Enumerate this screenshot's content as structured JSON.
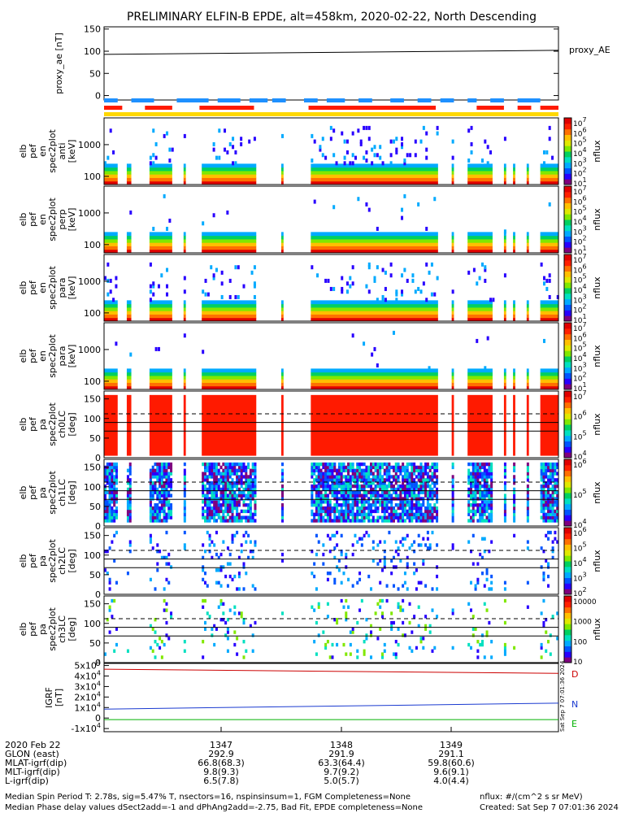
{
  "title": "PRELIMINARY ELFIN-B EPDE, alt=458km, 2020-02-22, North Descending",
  "colors": {
    "spectrum": [
      "#7f007f",
      "#2800ff",
      "#0055ff",
      "#00aaff",
      "#00e0c0",
      "#00d060",
      "#80e800",
      "#e0e800",
      "#ffc000",
      "#ff7000",
      "#ff2000",
      "#e00000"
    ],
    "sat_blue": "#1e90ff",
    "sat_red": "#ff1a00",
    "sat_yellow": "#ffd800",
    "line_D": "#cc0000",
    "line_N": "#1a3ad0",
    "line_E": "#00b000"
  },
  "chart_data": [
    {
      "panel": "proxy_ae",
      "type": "line",
      "ylabel": "proxy_ae [nT]",
      "yticks": [
        "150",
        "100",
        "50",
        "0"
      ],
      "ylim": [
        -10,
        155
      ],
      "series": [
        {
          "name": "proxy_AE",
          "x": [
            0,
            1
          ],
          "values": [
            93,
            102
          ]
        }
      ]
    },
    {
      "panel": "pef_en_spec2plot_anti",
      "type": "heatmap",
      "ylabel": [
        "elb",
        "pef",
        "en",
        "spec2plot",
        "anti",
        "[keV]"
      ],
      "yticks": [
        "1000",
        "100"
      ],
      "ylim": [
        55,
        7000
      ],
      "yscale": "log",
      "colorbar": {
        "label": "nflux",
        "ticks": [
          "10^7",
          "10^6",
          "10^5",
          "10^4",
          "10^3",
          "10^2",
          "10^1"
        ]
      }
    },
    {
      "panel": "pef_en_spec2plot_perp",
      "type": "heatmap",
      "ylabel": [
        "elb",
        "pef",
        "en",
        "spec2plot",
        "perp",
        "[keV]"
      ],
      "yticks": [
        "1000",
        "100"
      ],
      "ylim": [
        55,
        7000
      ],
      "yscale": "log",
      "colorbar": {
        "label": "nflux",
        "ticks": [
          "10^7",
          "10^6",
          "10^5",
          "10^4",
          "10^3",
          "10^2",
          "10^1"
        ]
      }
    },
    {
      "panel": "pef_en_spec2plot_para",
      "type": "heatmap",
      "ylabel": [
        "elb",
        "pef",
        "en",
        "spec2plot",
        "para",
        "[keV]"
      ],
      "yticks": [
        "1000",
        "100"
      ],
      "ylim": [
        55,
        7000
      ],
      "yscale": "log",
      "colorbar": {
        "label": "nflux",
        "ticks": [
          "10^7",
          "10^6",
          "10^5",
          "10^4",
          "10^3",
          "10^2",
          "10^1"
        ]
      }
    },
    {
      "panel": "pef_en_spec2plot_anti2",
      "type": "heatmap",
      "ylabel": [
        "elb",
        "pef",
        "en",
        "spec2plot",
        "para",
        "[keV]"
      ],
      "yticks": [
        "1000",
        "100"
      ],
      "ylim": [
        55,
        7000
      ],
      "yscale": "log",
      "colorbar": {
        "label": "nflux",
        "ticks": [
          "10^7",
          "10^6",
          "10^5",
          "10^4",
          "10^3",
          "10^2",
          "10^1"
        ]
      }
    },
    {
      "panel": "pa_ch0LC",
      "type": "heatmap",
      "ylabel": [
        "elb",
        "pef",
        "pa",
        "spec2plot",
        "ch0LC",
        "[deg]"
      ],
      "yticks": [
        "150",
        "100",
        "50",
        "0"
      ],
      "ylim": [
        0,
        170
      ],
      "reference_lines_deg": [
        {
          "value": 112,
          "style": "dashed"
        },
        {
          "value": 90,
          "style": "solid"
        },
        {
          "value": 68,
          "style": "solid"
        }
      ],
      "colorbar": {
        "label": "nflux",
        "ticks": [
          "10^7",
          "10^6",
          "10^5",
          "10^4"
        ]
      }
    },
    {
      "panel": "pa_ch1LC",
      "type": "heatmap",
      "ylabel": [
        "elb",
        "pef",
        "pa",
        "spec2plot",
        "ch1LC",
        "[deg]"
      ],
      "yticks": [
        "150",
        "100",
        "50",
        "0"
      ],
      "ylim": [
        0,
        170
      ],
      "reference_lines_deg": [
        {
          "value": 112,
          "style": "dashed"
        },
        {
          "value": 90,
          "style": "solid"
        },
        {
          "value": 68,
          "style": "solid"
        }
      ],
      "colorbar": {
        "label": "nflux",
        "ticks": [
          "10^6",
          "10^5",
          "10^4"
        ]
      }
    },
    {
      "panel": "pa_ch2LC",
      "type": "heatmap",
      "ylabel": [
        "elb",
        "pef",
        "pa",
        "spec2plot",
        "ch2LC",
        "[deg]"
      ],
      "yticks": [
        "150",
        "100",
        "50",
        "0"
      ],
      "ylim": [
        0,
        170
      ],
      "reference_lines_deg": [
        {
          "value": 112,
          "style": "dashed"
        },
        {
          "value": 90,
          "style": "solid"
        },
        {
          "value": 68,
          "style": "solid"
        }
      ],
      "colorbar": {
        "label": "nflux",
        "ticks": [
          "10^6",
          "10^5",
          "10^4",
          "10^3",
          "10^2"
        ]
      }
    },
    {
      "panel": "pa_ch3LC",
      "type": "heatmap",
      "ylabel": [
        "elb",
        "pef",
        "pa",
        "spec2plot",
        "ch3LC",
        "[deg]"
      ],
      "yticks": [
        "150",
        "100",
        "50",
        "0"
      ],
      "ylim": [
        0,
        170
      ],
      "reference_lines_deg": [
        {
          "value": 112,
          "style": "dashed"
        },
        {
          "value": 90,
          "style": "solid"
        },
        {
          "value": 68,
          "style": "solid"
        }
      ],
      "colorbar": {
        "label": "nflux",
        "ticks": [
          "10000",
          "1000",
          "100",
          "10"
        ]
      }
    },
    {
      "panel": "igrf",
      "type": "line",
      "ylabel": [
        "IGRF",
        "[nT]"
      ],
      "yticks": [
        "5x10^4",
        "4x10^4",
        "3x10^4",
        "2x10^4",
        "1x10^4",
        "0",
        "-1x10^4"
      ],
      "ylim": [
        -13000,
        52000
      ],
      "series": [
        {
          "name": "D",
          "x": [
            0,
            1
          ],
          "values": [
            46500,
            42500
          ]
        },
        {
          "name": "N",
          "x": [
            0,
            1
          ],
          "values": [
            8500,
            14200
          ]
        },
        {
          "name": "E",
          "x": [
            0,
            1
          ],
          "values": [
            -1500,
            -1500
          ]
        }
      ],
      "side_stamp": "Sat Sep 7 07:01:36 2024"
    }
  ],
  "satbars": {
    "blue_segments": [
      [
        0.0,
        0.03
      ],
      [
        0.06,
        0.11
      ],
      [
        0.16,
        0.23
      ],
      [
        0.25,
        0.3
      ],
      [
        0.32,
        0.36
      ],
      [
        0.37,
        0.4
      ],
      [
        0.44,
        0.47
      ],
      [
        0.49,
        0.53
      ],
      [
        0.56,
        0.59
      ],
      [
        0.63,
        0.66
      ],
      [
        0.69,
        0.72
      ],
      [
        0.74,
        0.77
      ],
      [
        0.8,
        0.82
      ],
      [
        0.85,
        0.88
      ],
      [
        0.91,
        0.96
      ]
    ],
    "red_segments": [
      [
        0.0,
        0.04
      ],
      [
        0.09,
        0.15
      ],
      [
        0.21,
        0.33
      ],
      [
        0.45,
        0.73
      ],
      [
        0.82,
        0.88
      ],
      [
        0.91,
        0.94
      ],
      [
        0.96,
        1.0
      ]
    ]
  },
  "xaxis": {
    "rows": [
      {
        "label": "2020 Feb 22",
        "values": [
          "1347",
          "1348",
          "1349"
        ]
      },
      {
        "label": "GLON (east)",
        "values": [
          "292.9",
          "291.9",
          "291.1"
        ]
      },
      {
        "label": "MLAT-igrf(dip)",
        "values": [
          "66.8(68.3)",
          "63.3(64.4)",
          "59.8(60.6)"
        ]
      },
      {
        "label": "MLT-igrf(dip)",
        "values": [
          "9.8(9.3)",
          "9.7(9.2)",
          "9.6(9.1)"
        ]
      },
      {
        "label": "L-igrf(dip)",
        "values": [
          "6.5(7.8)",
          "5.0(5.7)",
          "4.0(4.4)"
        ]
      }
    ]
  },
  "footer": {
    "line1_left": "Median Spin Period T: 2.78s, sig=5.47% T, nsectors=16, nspinsinsum=1, FGM Completeness=None",
    "line2_left": "Median Phase delay values dSect2add=-1 and dPhAng2add=-2.75, Bad Fit, EPDE completeness=None",
    "line1_right": "nflux: #/(cm^2 s sr MeV)",
    "line2_right": "Created: Sat Sep  7 07:01:36 2024"
  }
}
